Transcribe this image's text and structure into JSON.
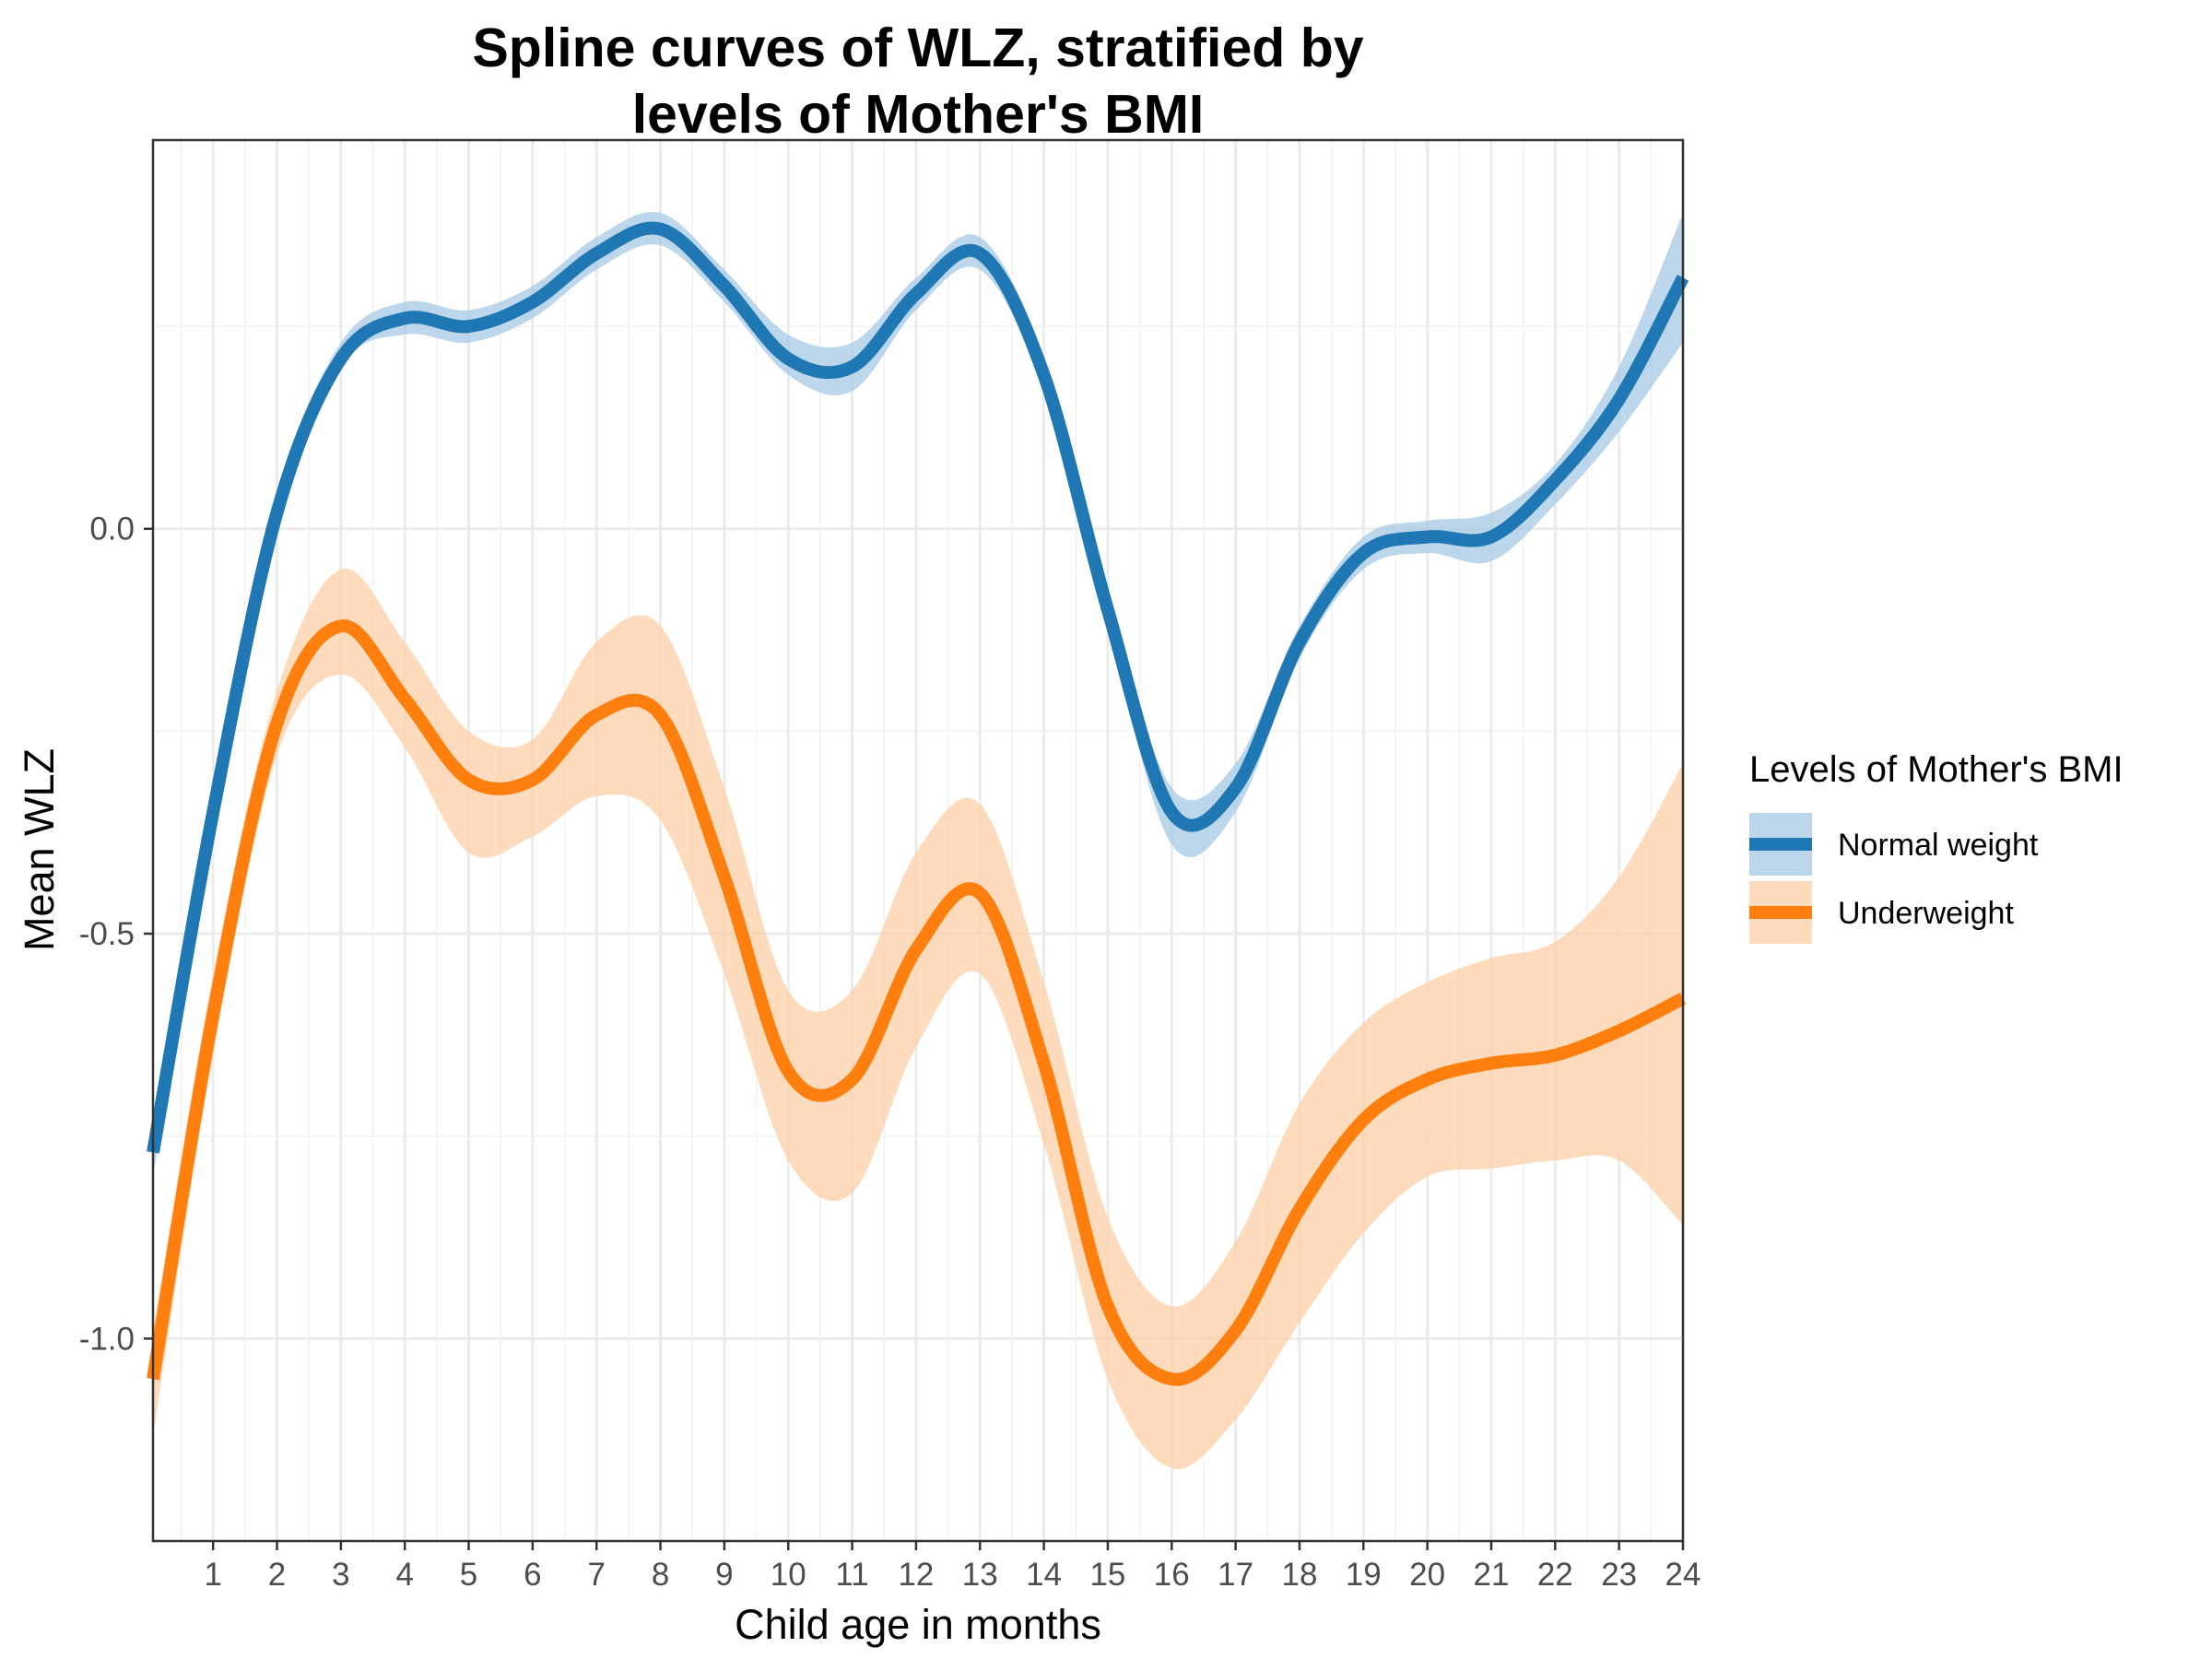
{
  "chart_data": {
    "type": "line",
    "title_lines": [
      "Spline curves of WLZ, stratified by",
      "levels of Mother's BMI"
    ],
    "xlabel": "Child age in months",
    "ylabel": "Mean WLZ",
    "xlim": [
      0.06,
      24
    ],
    "ylim": [
      -1.25,
      0.48
    ],
    "x_ticks": [
      1,
      2,
      3,
      4,
      5,
      6,
      7,
      8,
      9,
      10,
      11,
      12,
      13,
      14,
      15,
      16,
      17,
      18,
      19,
      20,
      21,
      22,
      23,
      24
    ],
    "x_tick_labels": [
      "1",
      "2",
      "3",
      "4",
      "5",
      "6",
      "7",
      "8",
      "9",
      "10",
      "11",
      "12",
      "13",
      "14",
      "15",
      "16",
      "17",
      "18",
      "19",
      "20",
      "21",
      "22",
      "23",
      "24"
    ],
    "y_ticks": [
      0.0,
      -0.5,
      -1.0
    ],
    "y_tick_labels": [
      "0.0",
      "-0.5",
      "-1.0"
    ],
    "grid": true,
    "legend": {
      "title": "Levels of Mother's BMI",
      "position": "right"
    },
    "series": [
      {
        "name": "Normal weight",
        "color": "#1f77b4",
        "band_color": "#a6c8e4",
        "x": [
          0.06,
          1,
          2,
          3,
          4,
          5,
          6,
          7,
          8,
          9,
          10,
          11,
          12,
          13,
          14,
          15,
          16,
          17,
          18,
          19,
          20,
          21,
          22,
          23,
          24
        ],
        "y": [
          -0.77,
          -0.35,
          0.02,
          0.21,
          0.26,
          0.25,
          0.28,
          0.34,
          0.37,
          0.3,
          0.21,
          0.2,
          0.29,
          0.34,
          0.19,
          -0.1,
          -0.35,
          -0.32,
          -0.14,
          -0.03,
          -0.01,
          -0.01,
          0.06,
          0.16,
          0.31
        ],
        "lower": [
          -0.8,
          -0.37,
          0.0,
          0.2,
          0.24,
          0.23,
          0.26,
          0.32,
          0.35,
          0.28,
          0.19,
          0.17,
          0.27,
          0.32,
          0.17,
          -0.12,
          -0.39,
          -0.35,
          -0.16,
          -0.05,
          -0.03,
          -0.04,
          0.03,
          0.12,
          0.23
        ],
        "upper": [
          -0.74,
          -0.33,
          0.04,
          0.23,
          0.28,
          0.27,
          0.3,
          0.36,
          0.39,
          0.32,
          0.24,
          0.23,
          0.31,
          0.36,
          0.21,
          -0.08,
          -0.32,
          -0.29,
          -0.12,
          -0.01,
          0.01,
          0.02,
          0.08,
          0.2,
          0.39
        ]
      },
      {
        "name": "Underweight",
        "color": "#ff7f0e",
        "band_color": "#fdcfa5",
        "x": [
          0.06,
          1,
          2,
          3,
          4,
          5,
          6,
          7,
          8,
          9,
          10,
          11,
          12,
          13,
          14,
          15,
          16,
          17,
          18,
          19,
          20,
          21,
          22,
          23,
          24
        ],
        "y": [
          -1.05,
          -0.6,
          -0.24,
          -0.12,
          -0.21,
          -0.31,
          -0.31,
          -0.23,
          -0.23,
          -0.43,
          -0.67,
          -0.68,
          -0.52,
          -0.45,
          -0.66,
          -0.96,
          -1.05,
          -0.99,
          -0.84,
          -0.73,
          -0.68,
          -0.66,
          -0.65,
          -0.62,
          -0.58
        ],
        "lower": [
          -1.12,
          -0.65,
          -0.28,
          -0.18,
          -0.27,
          -0.4,
          -0.38,
          -0.33,
          -0.36,
          -0.55,
          -0.78,
          -0.82,
          -0.64,
          -0.55,
          -0.76,
          -1.05,
          -1.16,
          -1.1,
          -0.98,
          -0.87,
          -0.8,
          -0.79,
          -0.78,
          -0.78,
          -0.86
        ],
        "upper": [
          -0.99,
          -0.55,
          -0.2,
          -0.05,
          -0.14,
          -0.25,
          -0.26,
          -0.14,
          -0.12,
          -0.32,
          -0.57,
          -0.57,
          -0.4,
          -0.34,
          -0.56,
          -0.85,
          -0.96,
          -0.88,
          -0.71,
          -0.61,
          -0.56,
          -0.53,
          -0.51,
          -0.43,
          -0.29
        ]
      }
    ]
  }
}
